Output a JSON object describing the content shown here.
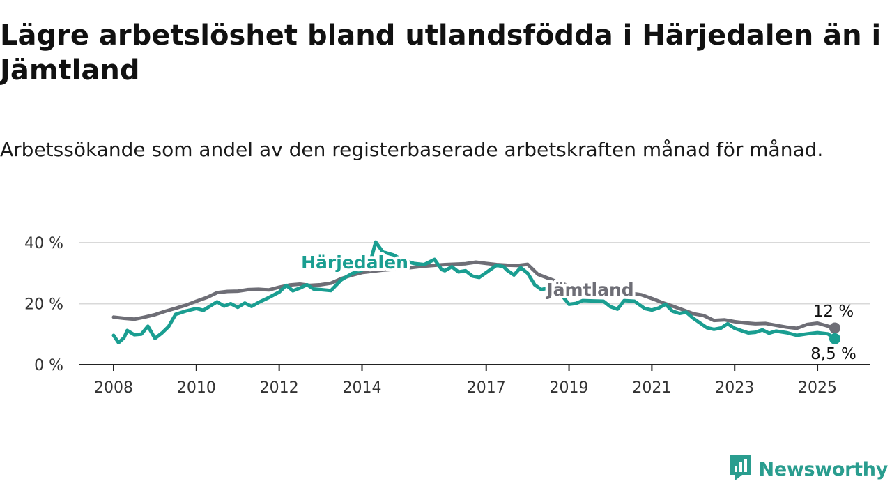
{
  "title": "Lägre arbetslöshet bland utlandsfödda i Härjedalen än i Jämtland",
  "subtitle": "Arbetssökande som andel av den registerbaserade arbetskraften månad för månad.",
  "brand": {
    "name": "Newsworthy",
    "color": "#2a9d8f",
    "icon": "newsworthy-logo-icon"
  },
  "chart_data": {
    "type": "line",
    "ylim": [
      0,
      40
    ],
    "xlim": [
      2008,
      2025.42
    ],
    "grid": true,
    "y_ticks": [
      {
        "value": 0,
        "label": "0 %"
      },
      {
        "value": 20,
        "label": "20 %"
      },
      {
        "value": 40,
        "label": "40 %"
      }
    ],
    "x_ticks": [
      {
        "value": 2008,
        "label": "2008"
      },
      {
        "value": 2010,
        "label": "2010"
      },
      {
        "value": 2012,
        "label": "2012"
      },
      {
        "value": 2014,
        "label": "2014"
      },
      {
        "value": 2017,
        "label": "2017"
      },
      {
        "value": 2019,
        "label": "2019"
      },
      {
        "value": 2021,
        "label": "2021"
      },
      {
        "value": 2023,
        "label": "2023"
      },
      {
        "value": 2025,
        "label": "2025"
      }
    ],
    "series": [
      {
        "name": "Jämtland",
        "color": "#6e6e76",
        "end_label": "12 %",
        "points": [
          [
            2008.0,
            15.6
          ],
          [
            2008.25,
            15.2
          ],
          [
            2008.5,
            14.9
          ],
          [
            2008.75,
            15.6
          ],
          [
            2009.0,
            16.4
          ],
          [
            2009.25,
            17.5
          ],
          [
            2009.5,
            18.5
          ],
          [
            2009.75,
            19.5
          ],
          [
            2010.0,
            20.8
          ],
          [
            2010.25,
            22.0
          ],
          [
            2010.5,
            23.6
          ],
          [
            2010.75,
            24.0
          ],
          [
            2011.0,
            24.1
          ],
          [
            2011.25,
            24.6
          ],
          [
            2011.5,
            24.7
          ],
          [
            2011.75,
            24.5
          ],
          [
            2012.0,
            25.4
          ],
          [
            2012.25,
            26.1
          ],
          [
            2012.5,
            26.4
          ],
          [
            2012.75,
            26.0
          ],
          [
            2013.0,
            26.2
          ],
          [
            2013.25,
            26.7
          ],
          [
            2013.5,
            28.2
          ],
          [
            2013.75,
            29.3
          ],
          [
            2014.0,
            30.2
          ],
          [
            2014.5,
            31.0
          ],
          [
            2015.0,
            31.5
          ],
          [
            2015.5,
            32.3
          ],
          [
            2016.0,
            32.8
          ],
          [
            2016.5,
            33.1
          ],
          [
            2016.75,
            33.6
          ],
          [
            2017.0,
            33.2
          ],
          [
            2017.25,
            32.8
          ],
          [
            2017.5,
            32.6
          ],
          [
            2017.75,
            32.5
          ],
          [
            2018.0,
            32.9
          ],
          [
            2018.25,
            29.6
          ],
          [
            2018.5,
            28.3
          ],
          [
            2018.75,
            27.0
          ],
          [
            2019.0,
            25.8
          ],
          [
            2019.25,
            24.8
          ],
          [
            2019.5,
            24.3
          ],
          [
            2019.75,
            23.9
          ],
          [
            2020.0,
            23.7
          ],
          [
            2020.25,
            23.6
          ],
          [
            2020.5,
            23.4
          ],
          [
            2020.75,
            22.9
          ],
          [
            2021.0,
            21.7
          ],
          [
            2021.25,
            20.4
          ],
          [
            2021.5,
            19.2
          ],
          [
            2021.75,
            18.0
          ],
          [
            2022.0,
            16.7
          ],
          [
            2022.25,
            16.1
          ],
          [
            2022.5,
            14.5
          ],
          [
            2022.75,
            14.7
          ],
          [
            2023.0,
            14.1
          ],
          [
            2023.25,
            13.7
          ],
          [
            2023.5,
            13.4
          ],
          [
            2023.75,
            13.5
          ],
          [
            2024.0,
            12.9
          ],
          [
            2024.25,
            12.3
          ],
          [
            2024.5,
            11.9
          ],
          [
            2024.75,
            13.2
          ],
          [
            2025.0,
            13.6
          ],
          [
            2025.42,
            12.0
          ]
        ]
      },
      {
        "name": "Härjedalen",
        "color": "#1a9e91",
        "end_label": "8,5 %",
        "points": [
          [
            2008.0,
            9.6
          ],
          [
            2008.12,
            7.2
          ],
          [
            2008.25,
            8.8
          ],
          [
            2008.33,
            11.2
          ],
          [
            2008.5,
            9.8
          ],
          [
            2008.67,
            10.0
          ],
          [
            2008.83,
            12.6
          ],
          [
            2009.0,
            8.6
          ],
          [
            2009.17,
            10.4
          ],
          [
            2009.33,
            12.5
          ],
          [
            2009.5,
            16.5
          ],
          [
            2009.75,
            17.6
          ],
          [
            2010.0,
            18.4
          ],
          [
            2010.17,
            17.8
          ],
          [
            2010.33,
            19.2
          ],
          [
            2010.5,
            20.6
          ],
          [
            2010.67,
            19.2
          ],
          [
            2010.83,
            20.0
          ],
          [
            2011.0,
            18.8
          ],
          [
            2011.17,
            20.2
          ],
          [
            2011.33,
            19.1
          ],
          [
            2011.5,
            20.4
          ],
          [
            2011.75,
            22.0
          ],
          [
            2012.0,
            23.8
          ],
          [
            2012.17,
            26.0
          ],
          [
            2012.33,
            24.2
          ],
          [
            2012.5,
            25.1
          ],
          [
            2012.67,
            26.2
          ],
          [
            2012.83,
            24.8
          ],
          [
            2013.0,
            24.6
          ],
          [
            2013.25,
            24.3
          ],
          [
            2013.5,
            27.8
          ],
          [
            2013.75,
            29.8
          ],
          [
            2014.0,
            31.0
          ],
          [
            2014.17,
            32.1
          ],
          [
            2014.33,
            40.2
          ],
          [
            2014.5,
            37.0
          ],
          [
            2014.75,
            36.0
          ],
          [
            2015.0,
            34.2
          ],
          [
            2015.25,
            33.2
          ],
          [
            2015.5,
            32.8
          ],
          [
            2015.75,
            34.5
          ],
          [
            2015.92,
            31.2
          ],
          [
            2016.0,
            30.8
          ],
          [
            2016.17,
            32.1
          ],
          [
            2016.33,
            30.4
          ],
          [
            2016.5,
            30.8
          ],
          [
            2016.67,
            29.0
          ],
          [
            2016.83,
            28.6
          ],
          [
            2017.0,
            30.2
          ],
          [
            2017.25,
            32.6
          ],
          [
            2017.42,
            32.1
          ],
          [
            2017.5,
            31.0
          ],
          [
            2017.67,
            29.4
          ],
          [
            2017.83,
            31.8
          ],
          [
            2018.0,
            30.0
          ],
          [
            2018.17,
            26.2
          ],
          [
            2018.33,
            24.6
          ],
          [
            2018.5,
            25.2
          ],
          [
            2018.83,
            22.6
          ],
          [
            2019.0,
            19.8
          ],
          [
            2019.17,
            20.1
          ],
          [
            2019.33,
            21.0
          ],
          [
            2019.58,
            20.9
          ],
          [
            2019.83,
            20.8
          ],
          [
            2020.0,
            19.0
          ],
          [
            2020.17,
            18.2
          ],
          [
            2020.33,
            21.0
          ],
          [
            2020.58,
            20.8
          ],
          [
            2020.83,
            18.4
          ],
          [
            2021.0,
            17.9
          ],
          [
            2021.17,
            18.6
          ],
          [
            2021.33,
            19.8
          ],
          [
            2021.5,
            17.5
          ],
          [
            2021.67,
            16.8
          ],
          [
            2021.83,
            17.2
          ],
          [
            2022.0,
            15.2
          ],
          [
            2022.17,
            13.6
          ],
          [
            2022.33,
            12.1
          ],
          [
            2022.5,
            11.6
          ],
          [
            2022.67,
            12.0
          ],
          [
            2022.83,
            13.4
          ],
          [
            2023.0,
            11.9
          ],
          [
            2023.17,
            11.1
          ],
          [
            2023.33,
            10.4
          ],
          [
            2023.5,
            10.6
          ],
          [
            2023.67,
            11.4
          ],
          [
            2023.83,
            10.3
          ],
          [
            2024.0,
            11.0
          ],
          [
            2024.25,
            10.5
          ],
          [
            2024.5,
            9.6
          ],
          [
            2024.75,
            10.1
          ],
          [
            2025.0,
            10.5
          ],
          [
            2025.25,
            10.1
          ],
          [
            2025.42,
            8.5
          ]
        ]
      }
    ]
  }
}
